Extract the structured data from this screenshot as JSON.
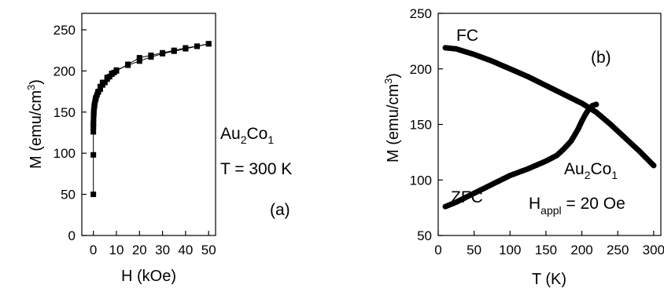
{
  "chart_data": [
    {
      "type": "scatter",
      "panel_label": "(a)",
      "xlabel": "H (kOe)",
      "ylabel": "M (emu/cm",
      "ylabel_sup": "3",
      "ylabel_close": ")",
      "xlim": [
        -5,
        53
      ],
      "ylim": [
        0,
        270
      ],
      "xticks": [
        0,
        10,
        20,
        30,
        40,
        50
      ],
      "yticks": [
        0,
        50,
        100,
        150,
        200,
        250
      ],
      "xtick_labels": [
        "0",
        "10",
        "20",
        "30",
        "40",
        "50"
      ],
      "ytick_labels": [
        "0",
        "50",
        "100",
        "150",
        "200",
        "250"
      ],
      "annotations": {
        "line1_main": "Au",
        "line1_sub1": "2",
        "line1_mid": "Co",
        "line1_sub2": "1",
        "line2": "T = 300 K"
      },
      "marker": "square",
      "series": [
        {
          "x": [
            0,
            0,
            0,
            0.02,
            0.05,
            0.08,
            0.12,
            0.18,
            0.25,
            0.35,
            0.5,
            0.7,
            0.9,
            1.2,
            1.6,
            2.2,
            3,
            4,
            5,
            6,
            7,
            8,
            9,
            10,
            15,
            20,
            25,
            30,
            35,
            40,
            45,
            50
          ],
          "y": [
            50,
            98,
            126,
            132,
            137,
            142,
            146,
            150,
            153,
            156,
            159,
            162,
            165,
            168,
            171,
            175,
            178,
            183,
            186,
            190,
            193,
            196,
            198,
            200,
            208,
            216,
            219,
            222,
            225,
            228,
            230,
            233
          ]
        },
        {
          "x": [
            50,
            45,
            40,
            35,
            30,
            25,
            20,
            15,
            10,
            8,
            6,
            4,
            3,
            2,
            1,
            0.5,
            0.2,
            0
          ],
          "y": [
            233,
            230,
            227,
            224,
            221,
            217,
            212,
            207,
            201,
            197,
            192,
            186,
            181,
            174,
            166,
            158,
            148,
            135
          ]
        }
      ]
    },
    {
      "type": "scatter",
      "panel_label": "(b)",
      "xlabel": "T (K)",
      "ylabel": "M (emu/cm",
      "ylabel_sup": "3",
      "ylabel_close": ")",
      "xlim": [
        0,
        310
      ],
      "ylim": [
        50,
        250
      ],
      "xticks": [
        0,
        50,
        100,
        150,
        200,
        250,
        300
      ],
      "yticks": [
        50,
        100,
        150,
        200,
        250
      ],
      "xtick_labels": [
        "0",
        "50",
        "100",
        "150",
        "200",
        "250",
        "300"
      ],
      "ytick_labels": [
        "50",
        "100",
        "150",
        "200",
        "250"
      ],
      "marker": "circle",
      "series_labels": {
        "fc": "FC",
        "zfc": "ZFC"
      },
      "annotations": {
        "line1_main": "Au",
        "line1_sub1": "2",
        "line1_mid": "Co",
        "line1_sub2": "1",
        "line2_main": "H",
        "line2_sub": "appl",
        "line2_rest": " = 20 Oe"
      },
      "series": [
        {
          "name": "FC",
          "x": [
            10,
            25,
            50,
            75,
            100,
            125,
            150,
            175,
            200,
            220,
            240,
            260,
            280,
            300
          ],
          "y": [
            219,
            218,
            213,
            207,
            200,
            193,
            185,
            177,
            169,
            161,
            150,
            138,
            126,
            113
          ]
        },
        {
          "name": "ZFC",
          "x": [
            10,
            25,
            50,
            75,
            100,
            125,
            150,
            165,
            175,
            185,
            195,
            200,
            205,
            210,
            215,
            220
          ],
          "y": [
            76,
            80,
            88,
            96,
            104,
            110,
            117,
            122,
            128,
            135,
            146,
            153,
            159,
            164,
            167,
            168
          ]
        }
      ]
    }
  ]
}
